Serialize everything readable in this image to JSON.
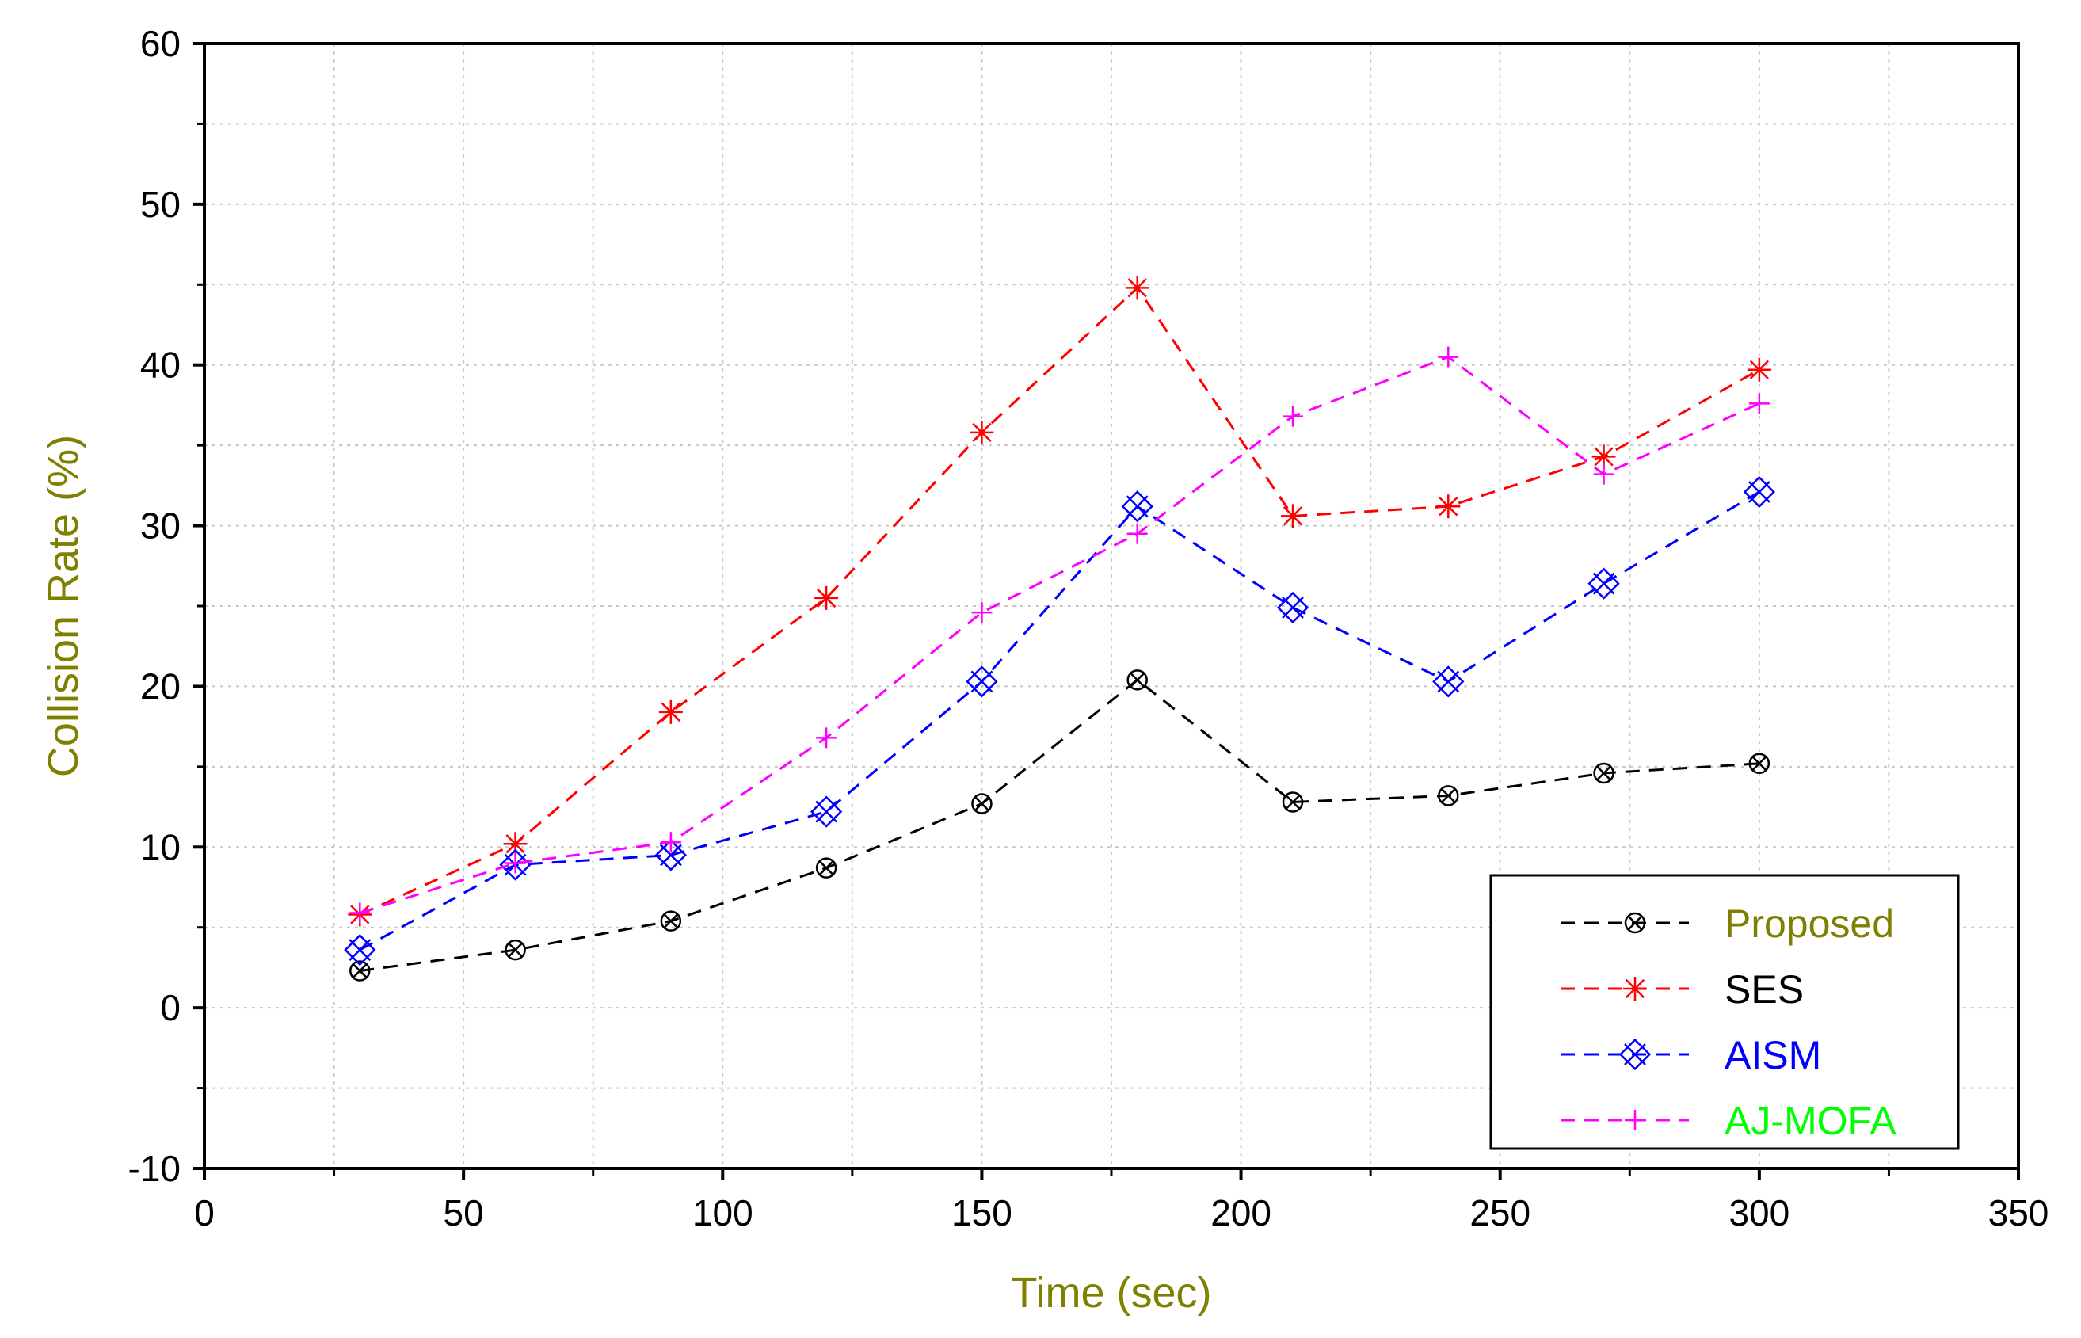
{
  "chart_data": {
    "type": "line",
    "title": "",
    "xlabel": "Time (sec)",
    "ylabel": "Collision Rate (%)",
    "label_color": "#7f7f00",
    "xlim": [
      0,
      350
    ],
    "ylim": [
      -10,
      60
    ],
    "xticks": [
      0,
      50,
      100,
      150,
      200,
      250,
      300,
      350
    ],
    "yticks": [
      -10,
      0,
      10,
      20,
      30,
      40,
      50,
      60
    ],
    "grid": true,
    "legend_position": "bottom-right",
    "x": [
      30,
      60,
      90,
      120,
      150,
      180,
      210,
      240,
      270,
      300
    ],
    "series": [
      {
        "name": "Proposed",
        "color": "#000000",
        "legend_text_color": "#7f7f00",
        "marker": "circle-x",
        "values": [
          2.3,
          3.6,
          5.4,
          8.7,
          12.7,
          20.4,
          12.8,
          13.2,
          14.6,
          15.2
        ]
      },
      {
        "name": "SES",
        "color": "#ff0000",
        "legend_text_color": "#000000",
        "marker": "asterisk",
        "values": [
          5.8,
          10.2,
          18.4,
          25.5,
          35.8,
          44.8,
          30.6,
          31.2,
          34.3,
          39.7
        ]
      },
      {
        "name": "AISM",
        "color": "#0000ff",
        "legend_text_color": "#0000ff",
        "marker": "square-x",
        "values": [
          3.6,
          8.9,
          9.5,
          12.2,
          20.3,
          31.2,
          24.9,
          20.3,
          26.4,
          32.1
        ]
      },
      {
        "name": "AJ-MOFA",
        "color": "#ff00ff",
        "legend_text_color": "#00ff00",
        "marker": "plus",
        "values": [
          5.9,
          9.0,
          10.3,
          16.8,
          24.6,
          29.5,
          36.8,
          40.5,
          33.2,
          37.6
        ]
      }
    ]
  }
}
